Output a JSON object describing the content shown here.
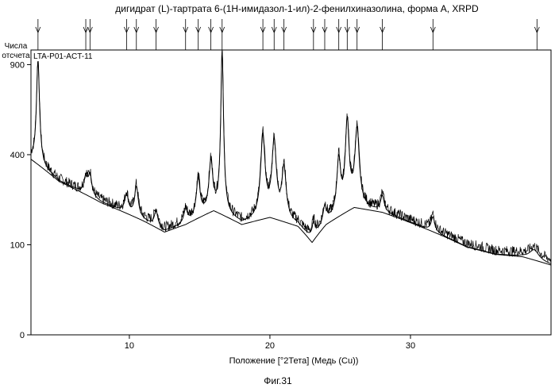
{
  "chart_data": {
    "type": "line",
    "title": "дигидрат (L)-тартрата 6-(1Н-имидазол-1-ил)-2-фенилхиназолина, форма А, XRPD",
    "ylabel_line1": "Числа",
    "ylabel_line2": "отсчета",
    "xlabel": "Положение [°2Тета] (Медь (Cu))",
    "sample_label": "LTA-P01-ACT-11",
    "caption": "Фиг.31",
    "xlim": [
      3.0,
      40.0
    ],
    "ylim": [
      0,
      1000
    ],
    "y_scale": "sqrt",
    "x_ticks": [
      10,
      20,
      30
    ],
    "y_ticks": [
      0,
      100,
      400,
      900
    ],
    "grid": false,
    "peak_markers": [
      3.5,
      6.9,
      7.2,
      9.8,
      10.5,
      11.9,
      14.0,
      14.9,
      15.8,
      16.6,
      19.5,
      20.3,
      21.0,
      23.1,
      23.9,
      24.9,
      25.5,
      26.2,
      28.0,
      31.6,
      39.0
    ],
    "peaks": [
      {
        "x": 3.5,
        "y": 570,
        "w": 0.12
      },
      {
        "x": 6.9,
        "y": 60,
        "w": 0.15
      },
      {
        "x": 7.2,
        "y": 75,
        "w": 0.15
      },
      {
        "x": 9.8,
        "y": 60,
        "w": 0.15
      },
      {
        "x": 10.5,
        "y": 100,
        "w": 0.15
      },
      {
        "x": 11.9,
        "y": 45,
        "w": 0.15
      },
      {
        "x": 14.0,
        "y": 40,
        "w": 0.15
      },
      {
        "x": 14.9,
        "y": 130,
        "w": 0.15
      },
      {
        "x": 15.8,
        "y": 180,
        "w": 0.15
      },
      {
        "x": 16.6,
        "y": 810,
        "w": 0.1
      },
      {
        "x": 19.5,
        "y": 320,
        "w": 0.17
      },
      {
        "x": 20.3,
        "y": 290,
        "w": 0.17
      },
      {
        "x": 21.0,
        "y": 180,
        "w": 0.17
      },
      {
        "x": 23.1,
        "y": 40,
        "w": 0.15
      },
      {
        "x": 23.9,
        "y": 50,
        "w": 0.15
      },
      {
        "x": 24.9,
        "y": 200,
        "w": 0.15
      },
      {
        "x": 25.5,
        "y": 370,
        "w": 0.15
      },
      {
        "x": 26.2,
        "y": 320,
        "w": 0.17
      },
      {
        "x": 28.0,
        "y": 50,
        "w": 0.15
      },
      {
        "x": 31.6,
        "y": 40,
        "w": 0.15
      },
      {
        "x": 38.8,
        "y": 20,
        "w": 0.4
      }
    ],
    "background": [
      {
        "x": 3.0,
        "y": 380
      },
      {
        "x": 5.0,
        "y": 290
      },
      {
        "x": 8.0,
        "y": 215
      },
      {
        "x": 11.0,
        "y": 160
      },
      {
        "x": 12.5,
        "y": 130
      },
      {
        "x": 14.0,
        "y": 150
      },
      {
        "x": 16.0,
        "y": 190
      },
      {
        "x": 18.0,
        "y": 150
      },
      {
        "x": 20.0,
        "y": 170
      },
      {
        "x": 22.0,
        "y": 145
      },
      {
        "x": 23.0,
        "y": 105
      },
      {
        "x": 24.0,
        "y": 150
      },
      {
        "x": 26.0,
        "y": 200
      },
      {
        "x": 28.0,
        "y": 185
      },
      {
        "x": 31.0,
        "y": 140
      },
      {
        "x": 34.0,
        "y": 95
      },
      {
        "x": 36.0,
        "y": 80
      },
      {
        "x": 38.0,
        "y": 75
      },
      {
        "x": 40.0,
        "y": 60
      }
    ]
  }
}
